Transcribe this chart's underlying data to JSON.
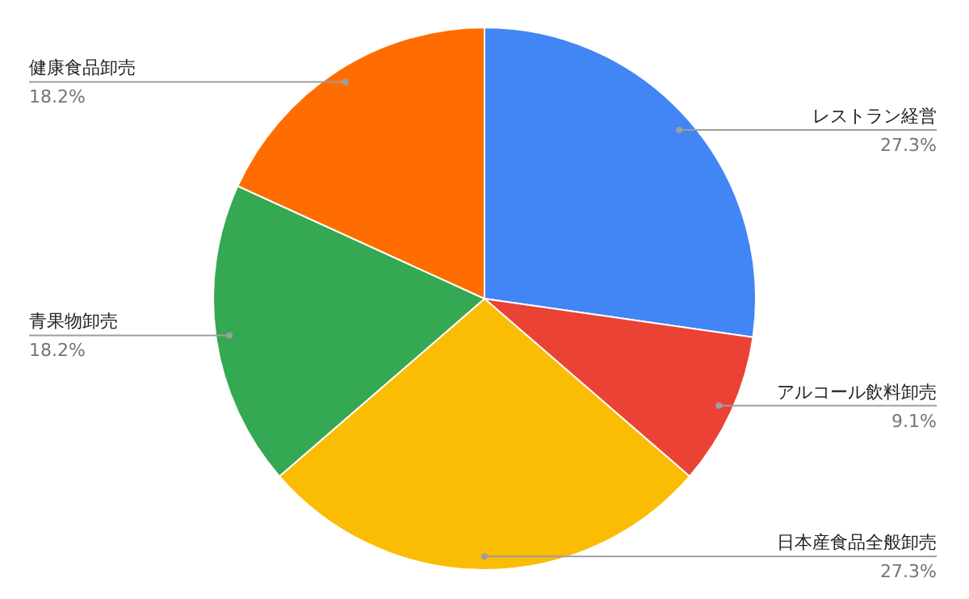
{
  "chart_data": {
    "type": "pie",
    "categories": [
      "レストラン経営",
      "アルコール飲料卸売",
      "日本産食品全般卸売",
      "青果物卸売",
      "健康食品卸売"
    ],
    "values": [
      27.3,
      9.1,
      27.3,
      18.2,
      18.2
    ],
    "colors": [
      "#4285f4",
      "#ea4335",
      "#fbbc04",
      "#34a853",
      "#ff6d01"
    ],
    "value_labels": [
      "27.3%",
      "9.1%",
      "27.3%",
      "18.2%",
      "18.2%"
    ],
    "legend": false
  }
}
